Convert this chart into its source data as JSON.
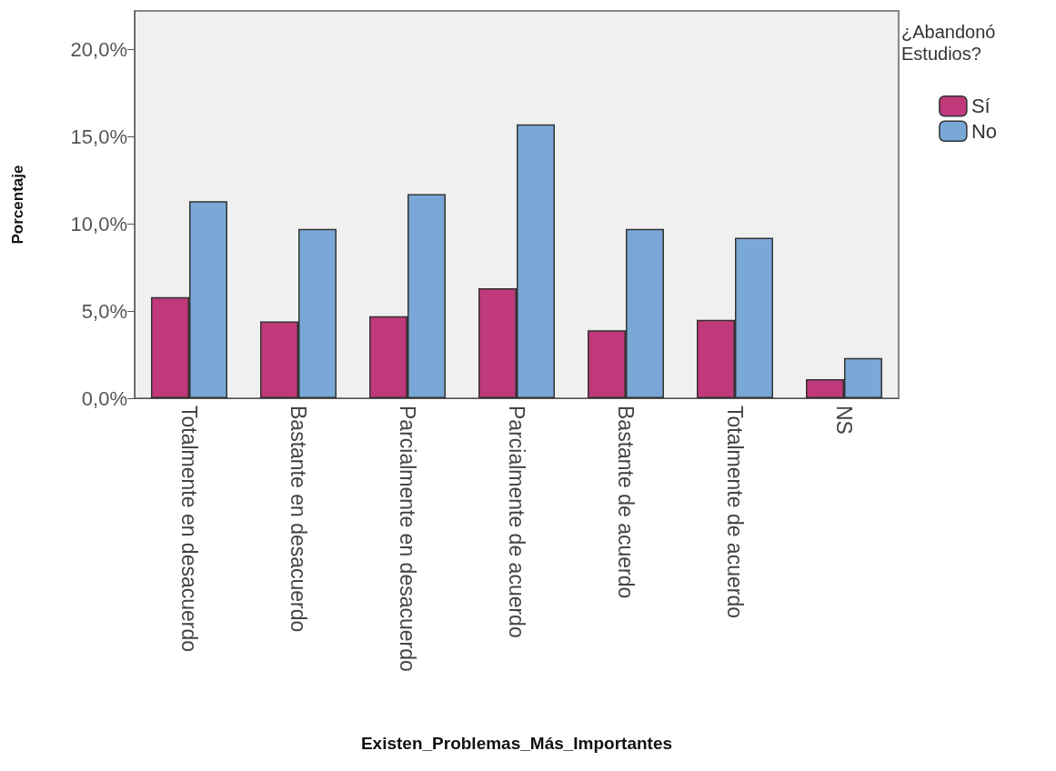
{
  "chart_data": {
    "type": "bar",
    "xlabel": "Existen_Problemas_Más_Importantes",
    "ylabel": "Porcentaje",
    "legend_title": "¿Abandonó Estudios?",
    "categories": [
      "Totalmente en desacuerdo",
      "Bastante en desacuerdo",
      "Parcialmente en desacuerdo",
      "Parcialmente de acuerdo",
      "Bastante de acuerdo",
      "Totalmente de acuerdo",
      "NS"
    ],
    "series": [
      {
        "name": "Sí",
        "color": "#c0397a",
        "values": [
          5.8,
          4.4,
          4.7,
          6.3,
          3.9,
          4.5,
          1.1
        ]
      },
      {
        "name": "No",
        "color": "#7aa8d6",
        "values": [
          11.3,
          9.7,
          11.7,
          15.7,
          9.7,
          9.2,
          2.3
        ]
      }
    ],
    "ylim": [
      0,
      22.2
    ],
    "yticks": [
      {
        "value": 0,
        "label": "0,0%"
      },
      {
        "value": 5,
        "label": "5,0%"
      },
      {
        "value": 10,
        "label": "10,0%"
      },
      {
        "value": 15,
        "label": "15,0%"
      },
      {
        "value": 20,
        "label": "20,0%"
      }
    ],
    "grid": false,
    "legend": "top right"
  }
}
